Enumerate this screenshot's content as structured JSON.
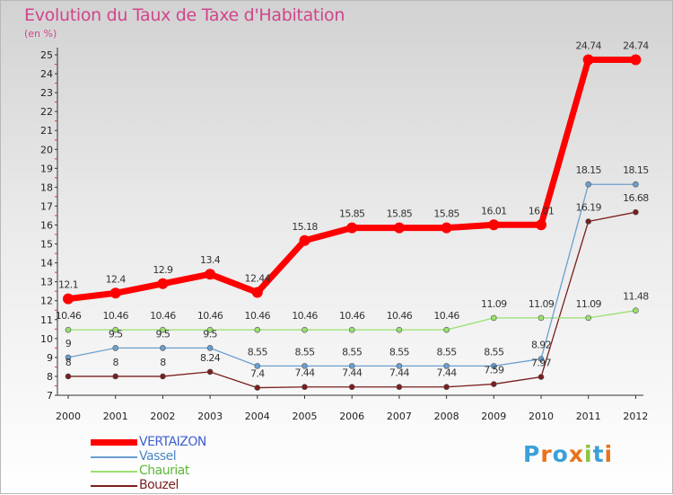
{
  "title": "Evolution du Taux de Taxe d'Habitation",
  "unit": "(en %)",
  "logo": {
    "text": "Proxiti",
    "letters": [
      "P",
      "r",
      "o",
      "x",
      "i",
      "t",
      "i"
    ],
    "colors": [
      "#3aa0d9",
      "#e8731c",
      "#3aa0d9",
      "#e8731c",
      "#8ac43f",
      "#3aa0d9",
      "#e8731c"
    ]
  },
  "chart_data": {
    "type": "line",
    "title": "Evolution du Taux de Taxe d'Habitation",
    "ylabel": "(en %)",
    "xlabel": "",
    "categories": [
      "2000",
      "2001",
      "2002",
      "2003",
      "2004",
      "2005",
      "2006",
      "2007",
      "2008",
      "2009",
      "2010",
      "2011",
      "2012"
    ],
    "yticks": [
      7,
      8,
      9,
      10,
      11,
      12,
      13,
      14,
      15,
      16,
      17,
      18,
      19,
      20,
      21,
      22,
      23,
      24,
      25
    ],
    "ylim": [
      7,
      25
    ],
    "grid": false,
    "legend_position": "bottom-left",
    "series": [
      {
        "name": "VERTAIZON",
        "color": "#ff0000",
        "values": [
          12.1,
          12.4,
          12.9,
          13.4,
          12.44,
          15.18,
          15.85,
          15.85,
          15.85,
          16.01,
          16.01,
          24.74,
          24.74
        ],
        "labels": [
          "12.1",
          "12.4",
          "12.9",
          "13.4",
          "12.44",
          "15.18",
          "15.85",
          "15.85",
          "15.85",
          "16.01",
          "16.01",
          "24.74",
          "24.74"
        ]
      },
      {
        "name": "Vassel",
        "color": "#6a9fd0",
        "values": [
          9,
          9.5,
          9.5,
          9.5,
          8.55,
          8.55,
          8.55,
          8.55,
          8.55,
          8.55,
          8.92,
          18.15,
          18.15
        ],
        "labels": [
          "9",
          "9.5",
          "9.5",
          "9.5",
          "8.55",
          "8.55",
          "8.55",
          "8.55",
          "8.55",
          "8.55",
          "8.92",
          "18.15",
          "18.15"
        ]
      },
      {
        "name": "Chauriat",
        "color": "#98e070",
        "values": [
          10.46,
          10.46,
          10.46,
          10.46,
          10.46,
          10.46,
          10.46,
          10.46,
          10.46,
          11.09,
          11.09,
          11.09,
          11.48
        ],
        "labels": [
          "10.46",
          "10.46",
          "10.46",
          "10.46",
          "10.46",
          "10.46",
          "10.46",
          "10.46",
          "10.46",
          "11.09",
          "11.09",
          "11.09",
          "11.48"
        ]
      },
      {
        "name": "Bouzel",
        "color": "#7a1e1e",
        "values": [
          8,
          8,
          8,
          8.24,
          7.4,
          7.44,
          7.44,
          7.44,
          7.44,
          7.59,
          7.97,
          16.19,
          16.68
        ],
        "labels": [
          "8",
          "8",
          "8",
          "8.24",
          "7.4",
          "7.44",
          "7.44",
          "7.44",
          "7.44",
          "7.59",
          "7.97",
          "16.19",
          "16.68"
        ]
      }
    ]
  }
}
